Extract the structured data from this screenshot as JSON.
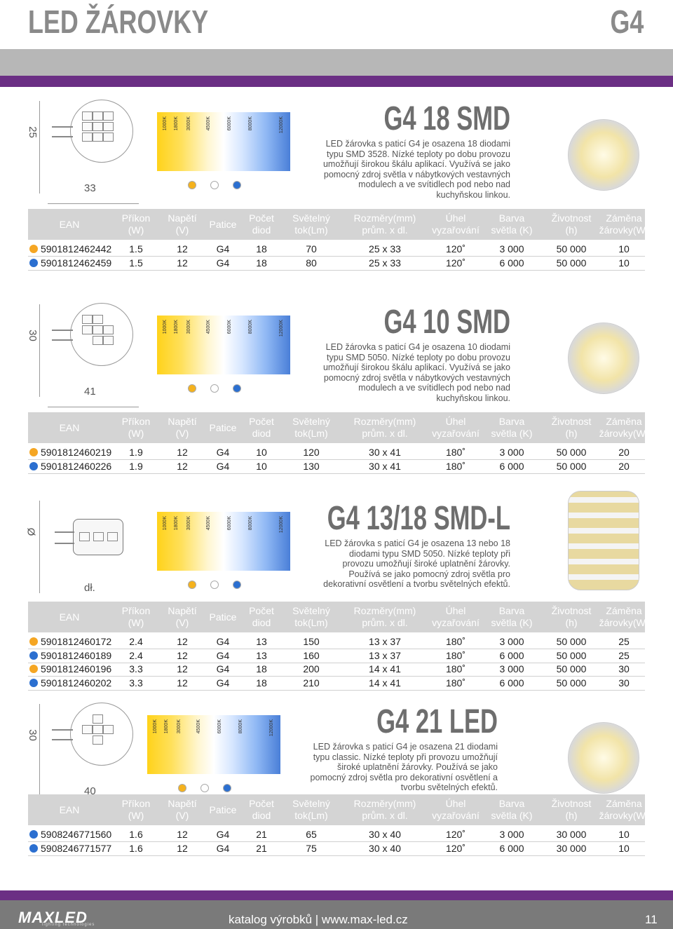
{
  "header": {
    "title": "LED ŽÁROVKY",
    "code": "G4"
  },
  "table_headers": [
    {
      "l1": "EAN",
      "l2": ""
    },
    {
      "l1": "Příkon",
      "l2": "(W)"
    },
    {
      "l1": "Napětí",
      "l2": "(V)"
    },
    {
      "l1": "Patice",
      "l2": ""
    },
    {
      "l1": "Počet",
      "l2": "diod"
    },
    {
      "l1": "Světelný",
      "l2": "tok(Lm)"
    },
    {
      "l1": "Rozměry(mm)",
      "l2": "prům. x dl."
    },
    {
      "l1": "Úhel",
      "l2": "vyzařování"
    },
    {
      "l1": "Barva",
      "l2": "světla (K)"
    },
    {
      "l1": "Životnost",
      "l2": "(h)"
    },
    {
      "l1": "Záměna",
      "l2": "žárovky(W)"
    }
  ],
  "spectrum_labels": [
    "1000K",
    "1800K",
    "3000K",
    "4500K",
    "6000K",
    "8000K",
    "12000K"
  ],
  "products": [
    {
      "title": "G4 18 SMD",
      "description": [
        "LED žárovka s paticí G4 je osazena 18 diodami",
        "typu SMD 3528. Nízké teploty po dobu provozu",
        "umožňují širokou škálu aplikací. Využívá se jako",
        "pomocný zdroj světla v nábytkových vestavných",
        "modulech a ve svítidlech pod nebo nad",
        "kuchyňskou linkou."
      ],
      "dim_h": "25",
      "dim_w": "33",
      "rows": [
        {
          "ean": "5901812462442",
          "power": "1.5",
          "voltage": "12",
          "base": "G4",
          "diodes": "18",
          "lumen": "70",
          "size": "25 x 33",
          "angle": "120˚",
          "color": "3 000",
          "life": "50 000",
          "replace": "10",
          "dot": "#f5a623"
        },
        {
          "ean": "5901812462459",
          "power": "1.5",
          "voltage": "12",
          "base": "G4",
          "diodes": "18",
          "lumen": "80",
          "size": "25 x 33",
          "angle": "120˚",
          "color": "6 000",
          "life": "50 000",
          "replace": "10",
          "dot": "#2b6fd0"
        }
      ]
    },
    {
      "title": "G4 10 SMD",
      "description": [
        "LED žárovka s paticí G4 je osazena 10 diodami",
        "typu SMD 5050. Nízké teploty po dobu provozu",
        "umožňují širokou škálu aplikací. Využívá se jako",
        "pomocný zdroj světla v nábytkových vestavných",
        "modulech a ve svítidlech pod nebo nad",
        "kuchyňskou linkou."
      ],
      "dim_h": "30",
      "dim_w": "41",
      "rows": [
        {
          "ean": "5901812460219",
          "power": "1.9",
          "voltage": "12",
          "base": "G4",
          "diodes": "10",
          "lumen": "120",
          "size": "30 x 41",
          "angle": "180˚",
          "color": "3 000",
          "life": "50 000",
          "replace": "20",
          "dot": "#f5a623"
        },
        {
          "ean": "5901812460226",
          "power": "1.9",
          "voltage": "12",
          "base": "G4",
          "diodes": "10",
          "lumen": "130",
          "size": "30 x 41",
          "angle": "180˚",
          "color": "6 000",
          "life": "50 000",
          "replace": "20",
          "dot": "#2b6fd0"
        }
      ]
    },
    {
      "title": "G4 13/18 SMD-L",
      "description": [
        "LED žárovka s paticí G4 je osazena 13 nebo 18",
        "diodami typu SMD 5050. Nízké teploty při",
        "provozu umožňují široké uplatnění žárovky.",
        "Používá se jako pomocný zdroj světla pro",
        "dekorativní osvětlení a tvorbu světelných efektů."
      ],
      "dim_h": "Ø",
      "dim_w": "dł.",
      "rows": [
        {
          "ean": "5901812460172",
          "power": "2.4",
          "voltage": "12",
          "base": "G4",
          "diodes": "13",
          "lumen": "150",
          "size": "13 x 37",
          "angle": "180˚",
          "color": "3 000",
          "life": "50 000",
          "replace": "25",
          "dot": "#f5a623"
        },
        {
          "ean": "5901812460189",
          "power": "2.4",
          "voltage": "12",
          "base": "G4",
          "diodes": "13",
          "lumen": "160",
          "size": "13 x 37",
          "angle": "180˚",
          "color": "6 000",
          "life": "50 000",
          "replace": "25",
          "dot": "#2b6fd0"
        },
        {
          "ean": "5901812460196",
          "power": "3.3",
          "voltage": "12",
          "base": "G4",
          "diodes": "18",
          "lumen": "200",
          "size": "14 x 41",
          "angle": "180˚",
          "color": "3 000",
          "life": "50 000",
          "replace": "30",
          "dot": "#f5a623"
        },
        {
          "ean": "5901812460202",
          "power": "3.3",
          "voltage": "12",
          "base": "G4",
          "diodes": "18",
          "lumen": "210",
          "size": "14 x 41",
          "angle": "180˚",
          "color": "6 000",
          "life": "50 000",
          "replace": "30",
          "dot": "#2b6fd0"
        }
      ]
    },
    {
      "title": "G4 21 LED",
      "description": [
        "LED žárovka s paticí G4 je osazena 21 diodami",
        "typu classic. Nízké teploty při provozu umožňují",
        "široké uplatnění žárovky. Používá se jako",
        "pomocný zdroj světla pro dekorativní osvětlení a",
        "tvorbu světelných efektů."
      ],
      "dim_h": "30",
      "dim_w": "40",
      "rows": [
        {
          "ean": "5908246771560",
          "power": "1.6",
          "voltage": "12",
          "base": "G4",
          "diodes": "21",
          "lumen": "65",
          "size": "30 x 40",
          "angle": "120˚",
          "color": "3 000",
          "life": "30 000",
          "replace": "10",
          "dot": "#2b6fd0"
        },
        {
          "ean": "5908246771577",
          "power": "1.6",
          "voltage": "12",
          "base": "G4",
          "diodes": "21",
          "lumen": "75",
          "size": "30 x 40",
          "angle": "120˚",
          "color": "6 000",
          "life": "30 000",
          "replace": "10",
          "dot": "#2b6fd0"
        }
      ]
    }
  ],
  "footer": {
    "logo": "MAXLED",
    "logo_sub": "lighting technologies",
    "text": "katalog výrobků | www.max-led.cz",
    "page": "11"
  }
}
